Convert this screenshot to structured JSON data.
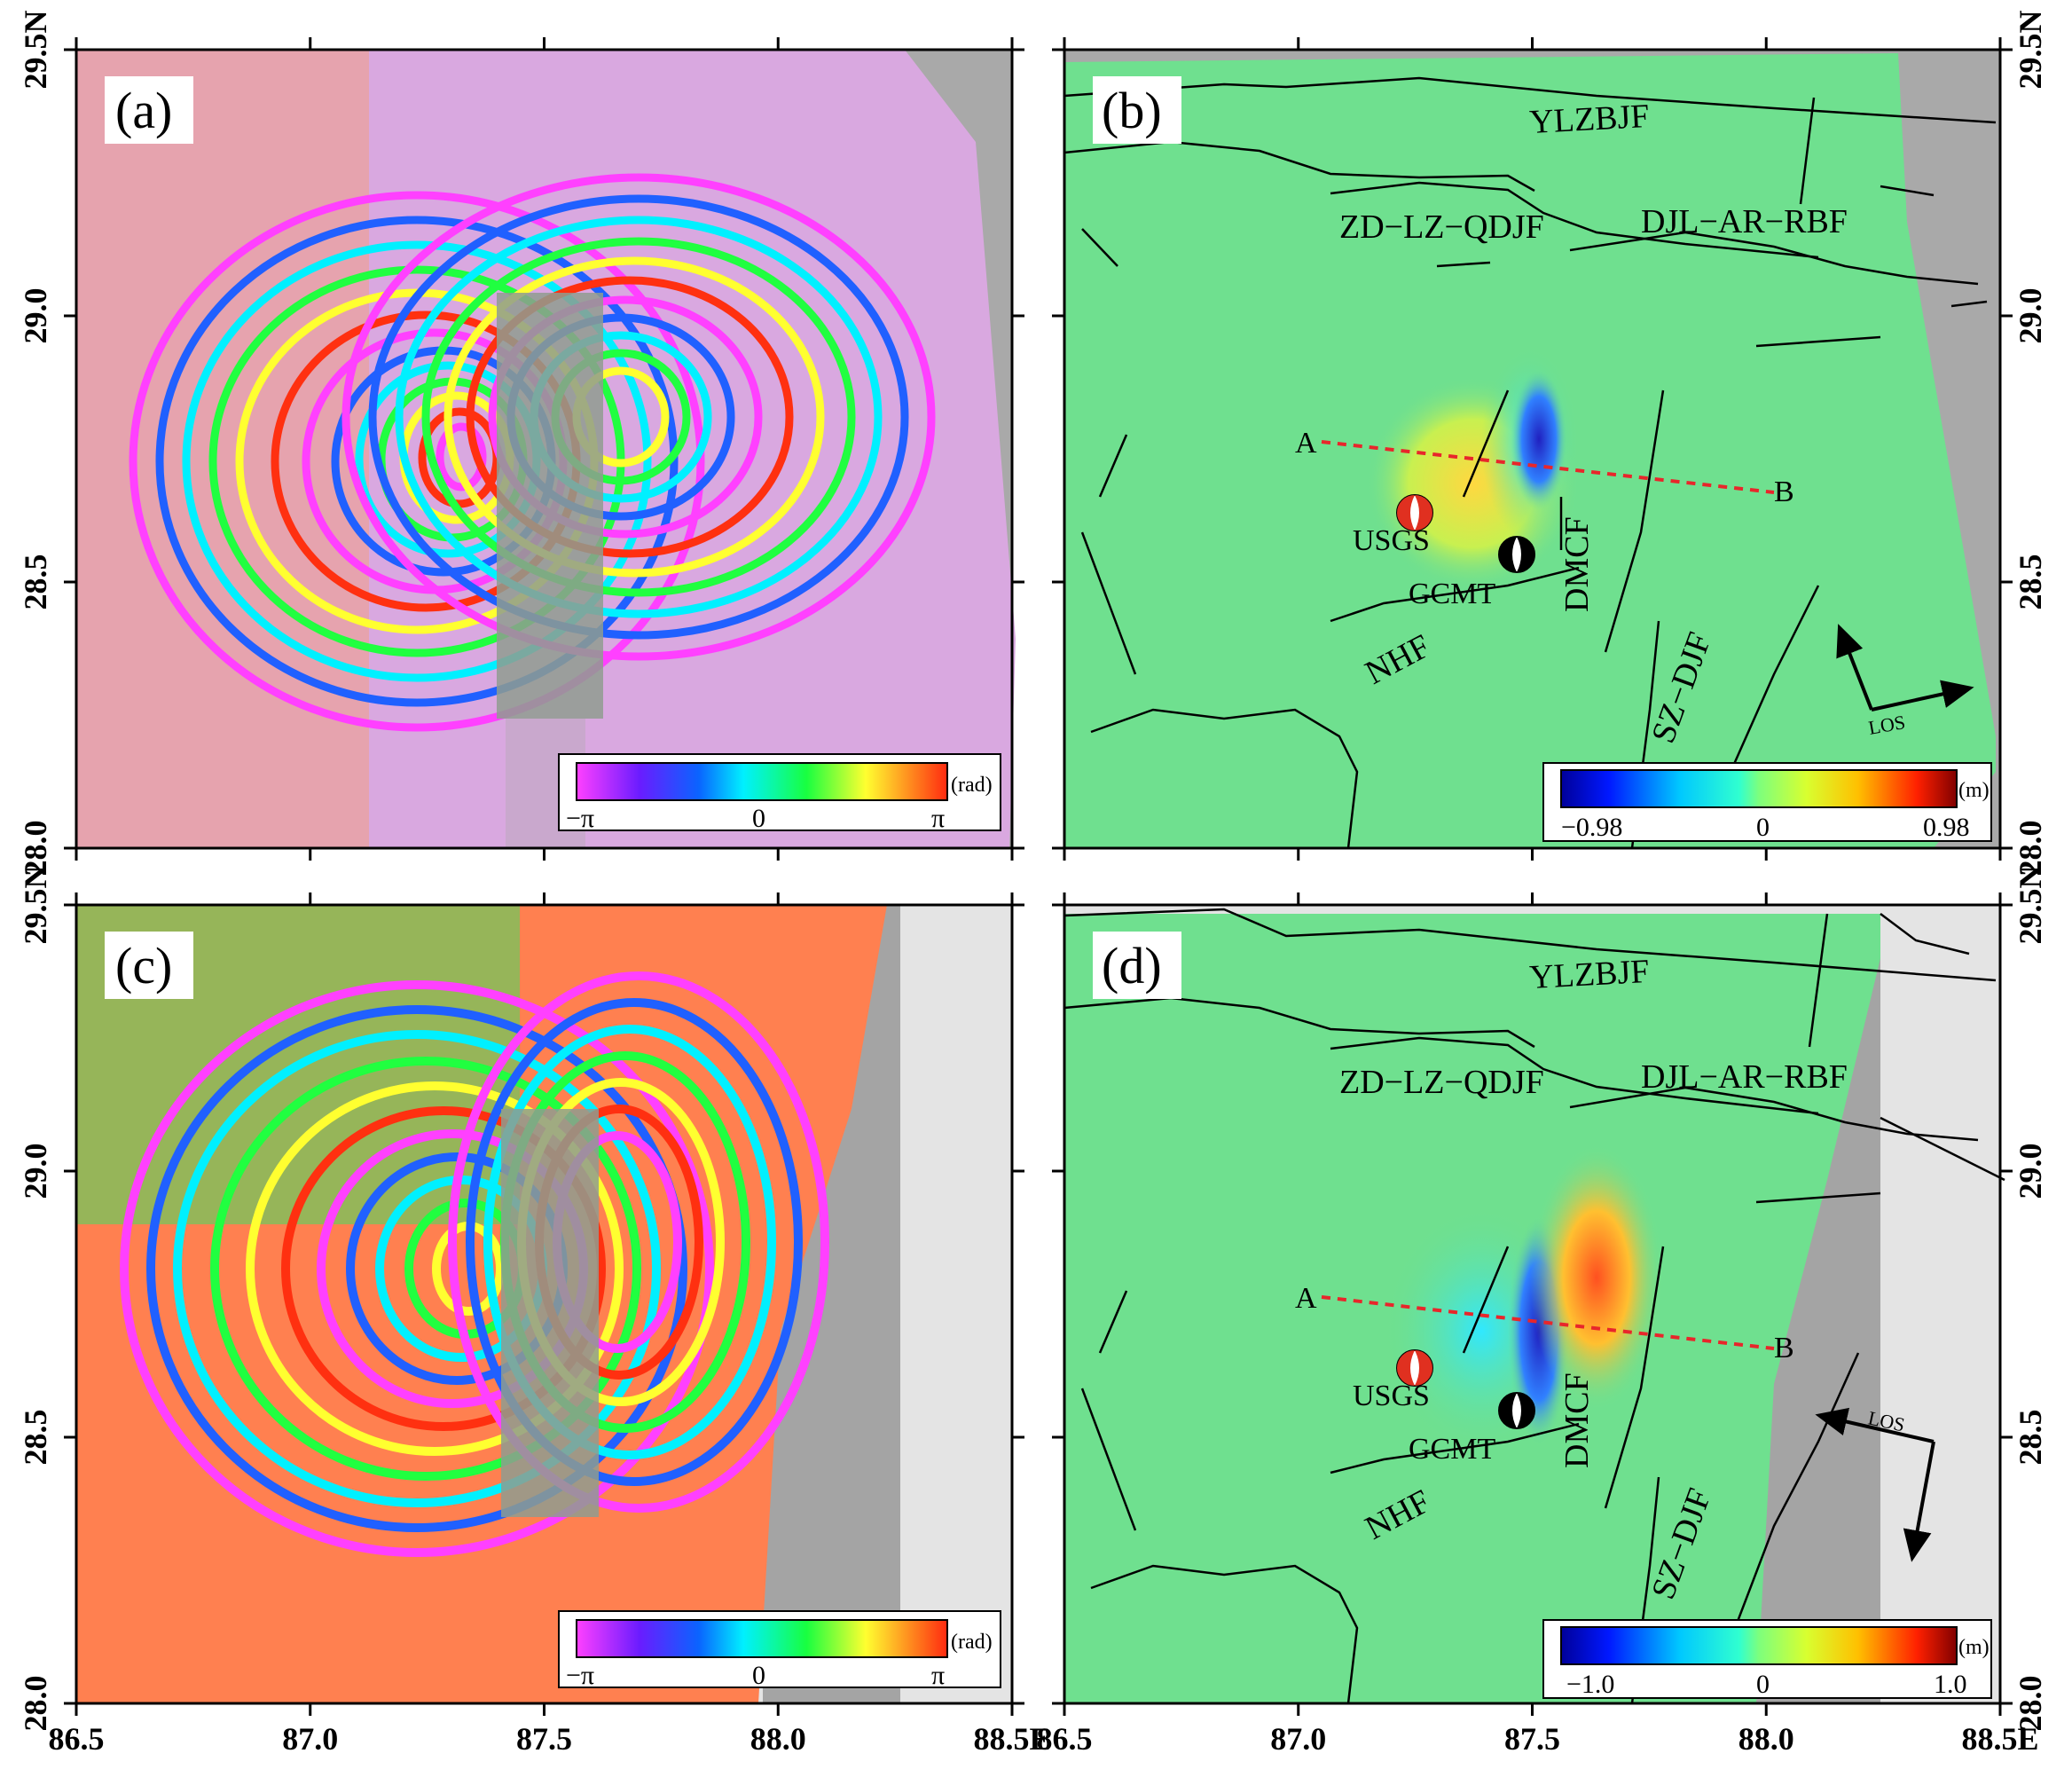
{
  "figure": {
    "x_ticks": [
      "86.5",
      "87.0",
      "87.5",
      "88.0",
      "88.5E"
    ],
    "y_ticks": [
      "28.0",
      "28.5",
      "29.0",
      "29.5N"
    ],
    "colors": {
      "gray_mask": "#a4a4a4",
      "disp_bg": "#6fe08f",
      "profile_line": "#e8262b",
      "beachball_usgs": "#e03020",
      "beachball_gcmt": "#000000",
      "fault_line": "#000000"
    }
  },
  "panels": [
    {
      "id": "a",
      "label": "(a)",
      "type": "wrapped_interferogram",
      "colorbar": {
        "min_label": "−π",
        "mid_label": "0",
        "max_label": "π",
        "unit": "(rad)",
        "colormap": "cyclic-hsv"
      }
    },
    {
      "id": "b",
      "label": "(b)",
      "type": "unwrapped_displacement",
      "faults": [
        "YLZBJF",
        "ZD−LZ−QDJF",
        "DJL−AR−RBF",
        "DMCF",
        "NHF",
        "SZ−DJF"
      ],
      "profile": {
        "start": "A",
        "end": "B"
      },
      "beachballs": [
        {
          "name": "USGS"
        },
        {
          "name": "GCMT"
        }
      ],
      "los_label": "LOS",
      "colorbar": {
        "min_label": "−0.98",
        "mid_label": "0",
        "max_label": "0.98",
        "unit": "(m)",
        "colormap": "jet"
      }
    },
    {
      "id": "c",
      "label": "(c)",
      "type": "wrapped_interferogram",
      "colorbar": {
        "min_label": "−π",
        "mid_label": "0",
        "max_label": "π",
        "unit": "(rad)",
        "colormap": "cyclic-hsv"
      }
    },
    {
      "id": "d",
      "label": "(d)",
      "type": "unwrapped_displacement",
      "faults": [
        "YLZBJF",
        "ZD−LZ−QDJF",
        "DJL−AR−RBF",
        "DMCF",
        "NHF",
        "SZ−DJF"
      ],
      "profile": {
        "start": "A",
        "end": "B"
      },
      "beachballs": [
        {
          "name": "USGS"
        },
        {
          "name": "GCMT"
        }
      ],
      "los_label": "LOS",
      "colorbar": {
        "min_label": "−1.0",
        "mid_label": "0",
        "max_label": "1.0",
        "unit": "(m)",
        "colormap": "jet"
      }
    }
  ]
}
